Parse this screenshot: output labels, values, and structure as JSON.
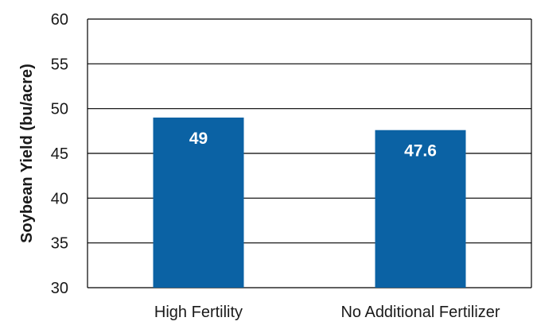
{
  "chart_data": {
    "type": "bar",
    "categories": [
      "High Fertility",
      "No Additional Fertilizer"
    ],
    "values": [
      49,
      47.6
    ],
    "data_labels": [
      "49",
      "47.6"
    ],
    "ylabel": "Soybean Yield (bu/acre)",
    "xlabel": "",
    "ylim": [
      30,
      60
    ],
    "yticks": [
      30,
      35,
      40,
      45,
      50,
      55,
      60
    ],
    "grid": true,
    "colors": {
      "bar": "#0b62a4",
      "grid": "#000000",
      "axis": "#000000"
    }
  }
}
